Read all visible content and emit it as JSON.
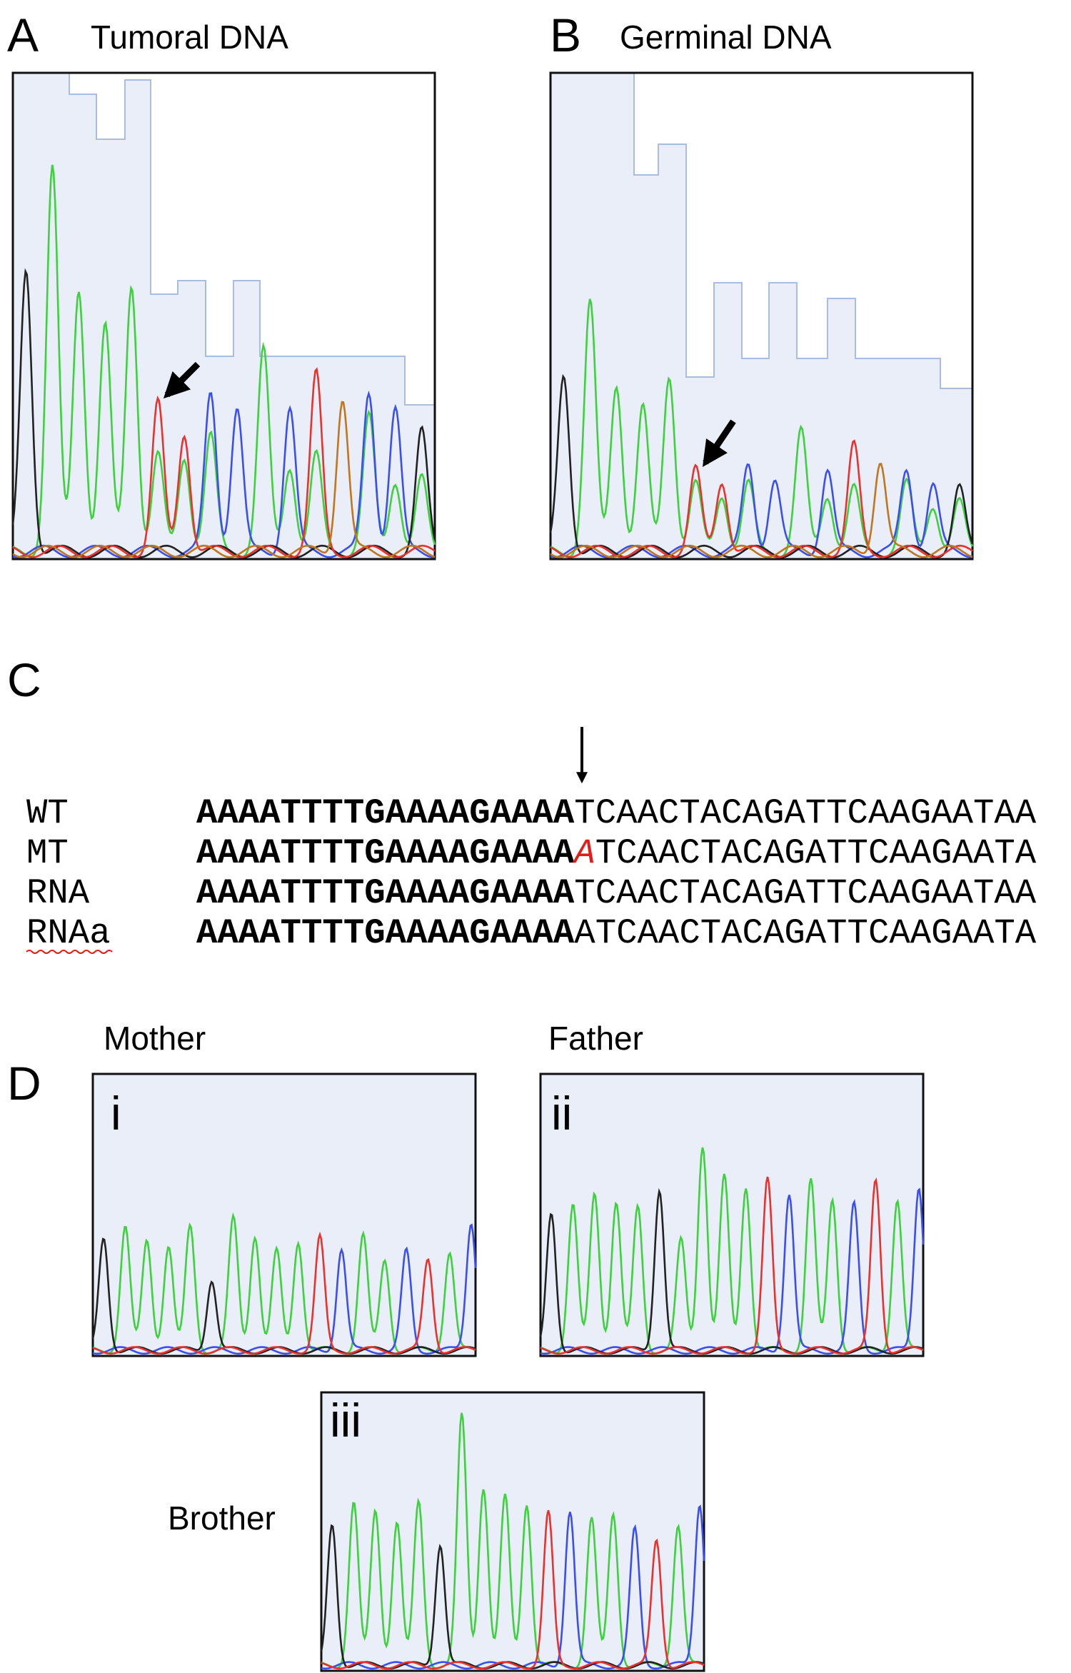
{
  "panels": [
    {
      "letter": "A",
      "title": "Tumoral DNA"
    },
    {
      "letter": "B",
      "title": "Germinal DNA"
    }
  ],
  "alignment": {
    "letter": "C",
    "rows": [
      {
        "label": "WT",
        "bold": "AAAATTTTGAAAAGAAAA",
        "rest": "TCAACTACAGATTCAAGAATAA"
      },
      {
        "label": "MT",
        "bold": "AAAATTTTGAAAAGAAAA",
        "inserted": "A",
        "rest": "TCAACTACAGATTCAAGAATA"
      },
      {
        "label": "RNA",
        "bold": "AAAATTTTGAAAAGAAAA",
        "rest": "TCAACTACAGATTCAAGAATAA"
      },
      {
        "label": "RNAa",
        "bold": "AAAATTTTGAAAAGAAAA",
        "rest": "ATCAACTACAGATTCAAGAATA"
      }
    ]
  },
  "family": {
    "letter": "D",
    "samples": [
      {
        "name": "Mother",
        "numeral": "i"
      },
      {
        "name": "Father",
        "numeral": "ii"
      },
      {
        "name": "Brother",
        "numeral": "iii"
      }
    ]
  }
}
